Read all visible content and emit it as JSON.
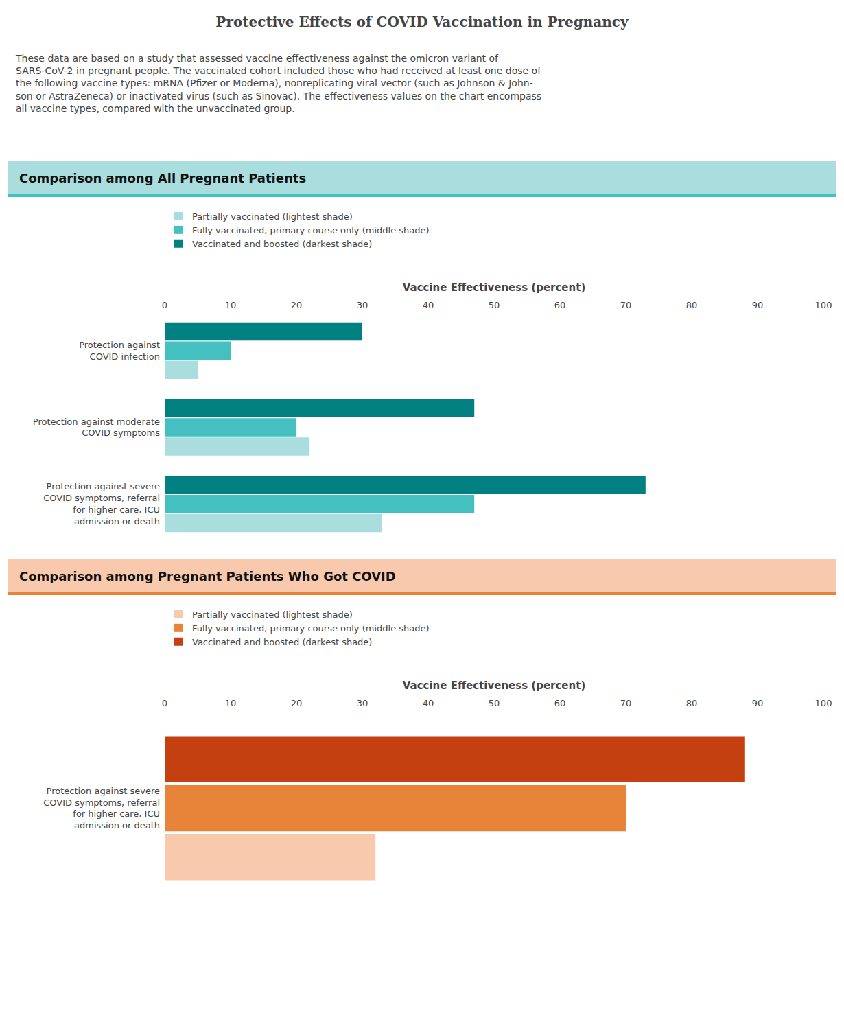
{
  "title": "Protective Effects of COVID Vaccination in Pregnancy",
  "subtitle": "These data are based on a study that assessed vaccine effectiveness against the omicron variant of\nSARS-CoV-2 in pregnant people. The vaccinated cohort included those who had received at least one dose of\nthe following vaccine types: mRNA (Pfizer or Moderna), nonreplicating viral vector (such as Johnson & John-\nson or AstraZeneca) or inactivated virus (such as Sinovac). The effectiveness values on the chart encompass\nall vaccine types, compared with the unvaccinated group.",
  "chart_data": [
    {
      "type": "bar",
      "orientation": "horizontal",
      "title": "Comparison among All Pregnant Patients",
      "categories": [
        "Protection against\nCOVID infection",
        "Protection against moderate\nCOVID symptoms",
        "Protection against severe\nCOVID symptoms, referral\nfor higher care, ICU\nadmission or death"
      ],
      "series": [
        {
          "name": "Partially vaccinated (lightest shade)",
          "color": "#aadede",
          "values": [
            5,
            22,
            33
          ]
        },
        {
          "name": "Fully vaccinated, primary course only (middle shade)",
          "color": "#45c0c0",
          "values": [
            10,
            20,
            47
          ]
        },
        {
          "name": "Vaccinated and boosted (darkest shade)",
          "color": "#008080",
          "values": [
            30,
            47,
            73
          ]
        }
      ],
      "xlabel": "Vaccine Effectiveness (percent)",
      "xlim": [
        0,
        100
      ],
      "xticks": [
        0,
        10,
        20,
        30,
        40,
        50,
        60,
        70,
        80,
        90,
        100
      ],
      "grid": false,
      "legend": "top"
    },
    {
      "type": "bar",
      "orientation": "horizontal",
      "title": "Comparison among Pregnant Patients Who Got COVID",
      "categories": [
        "Protection against severe\nCOVID symptoms, referral\nfor higher care, ICU\nadmission or death"
      ],
      "series": [
        {
          "name": "Partially vaccinated (lightest shade)",
          "color": "#f9c9ae",
          "values": [
            32
          ]
        },
        {
          "name": "Fully vaccinated, primary course only (middle shade)",
          "color": "#e8833a",
          "values": [
            70
          ]
        },
        {
          "name": "Vaccinated and boosted (darkest shade)",
          "color": "#c44010",
          "values": [
            88
          ]
        }
      ],
      "xlabel": "Vaccine Effectiveness (percent)",
      "xlim": [
        0,
        100
      ],
      "xticks": [
        0,
        10,
        20,
        30,
        40,
        50,
        60,
        70,
        80,
        90,
        100
      ],
      "grid": false,
      "legend": "top"
    }
  ]
}
